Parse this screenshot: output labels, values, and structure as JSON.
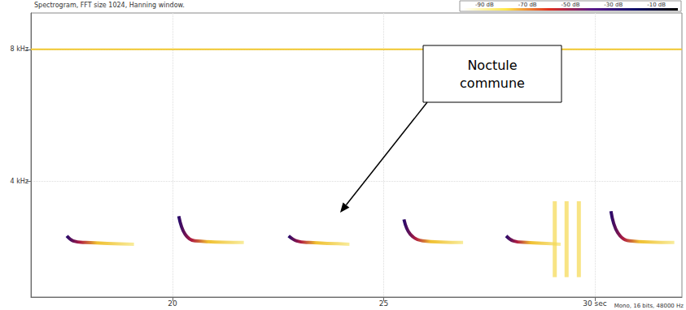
{
  "chart_data": {
    "type": "spectrogram",
    "title": "Spectrogram, FFT size 1024, Hanning window.",
    "annotation": "Noctule commune",
    "footer": "Mono, 16 bits, 48000 Hz",
    "xlim": [
      16.65,
      32.06
    ],
    "ylim": [
      0.5,
      9.1
    ],
    "xticks": [
      20,
      25,
      {
        "value": 30,
        "label": "30 sec"
      }
    ],
    "yticks": [
      {
        "value": 4,
        "label": "4 kHz"
      },
      {
        "value": 8,
        "label": "8 kHz"
      }
    ],
    "grid": true,
    "color_scale": {
      "range": [
        -100,
        0
      ],
      "ticks": [
        {
          "value": -90,
          "label": "-90 dB"
        },
        {
          "value": -70,
          "label": "-70 dB"
        },
        {
          "value": -50,
          "label": "-50 dB"
        },
        {
          "value": -30,
          "label": "-30 dB"
        },
        {
          "value": -10,
          "label": "-10 dB"
        }
      ],
      "colors": [
        "#ffffff",
        "#ffe84a",
        "#e03020",
        "#5a1a8a",
        "#10106a",
        "#000000"
      ]
    },
    "series": [
      {
        "type": "tone",
        "color": "#f2c830",
        "x": [
          16.65,
          32.06
        ],
        "values": [
          8,
          8
        ]
      },
      {
        "type": "call",
        "color": "#2a0a6a",
        "x": [
          17.5,
          17.65,
          17.94,
          19.09
        ],
        "values": [
          2.35,
          2.2,
          2.15,
          2.1
        ]
      },
      {
        "type": "call",
        "color": "#2a0a6a",
        "x": [
          20.15,
          20.3,
          20.53,
          21.69
        ],
        "values": [
          2.95,
          2.4,
          2.2,
          2.15
        ]
      },
      {
        "type": "call",
        "color": "#2a0a6a",
        "x": [
          22.75,
          22.94,
          23.23,
          24.19
        ],
        "values": [
          2.35,
          2.2,
          2.15,
          2.1
        ]
      },
      {
        "type": "call",
        "color": "#2a0a6a",
        "x": [
          25.48,
          25.63,
          25.92,
          26.88
        ],
        "values": [
          2.85,
          2.4,
          2.2,
          2.15
        ]
      },
      {
        "type": "call",
        "color": "#2a0a6a",
        "x": [
          27.9,
          28.07,
          28.38,
          29.19
        ],
        "values": [
          2.35,
          2.2,
          2.15,
          2.1
        ]
      },
      {
        "type": "call",
        "color": "#2a0a6a",
        "x": [
          30.38,
          30.54,
          30.82,
          31.88
        ],
        "values": [
          3.1,
          2.45,
          2.2,
          2.15
        ]
      },
      {
        "type": "click",
        "color": "#f5d850",
        "x": [
          29.05,
          29.05
        ],
        "values": [
          1.1,
          3.4
        ]
      },
      {
        "type": "click",
        "color": "#f5d850",
        "x": [
          29.33,
          29.33
        ],
        "values": [
          1.1,
          3.4
        ]
      },
      {
        "type": "click",
        "color": "#f5d850",
        "x": [
          29.62,
          29.62
        ],
        "values": [
          1.1,
          3.4
        ]
      }
    ]
  }
}
